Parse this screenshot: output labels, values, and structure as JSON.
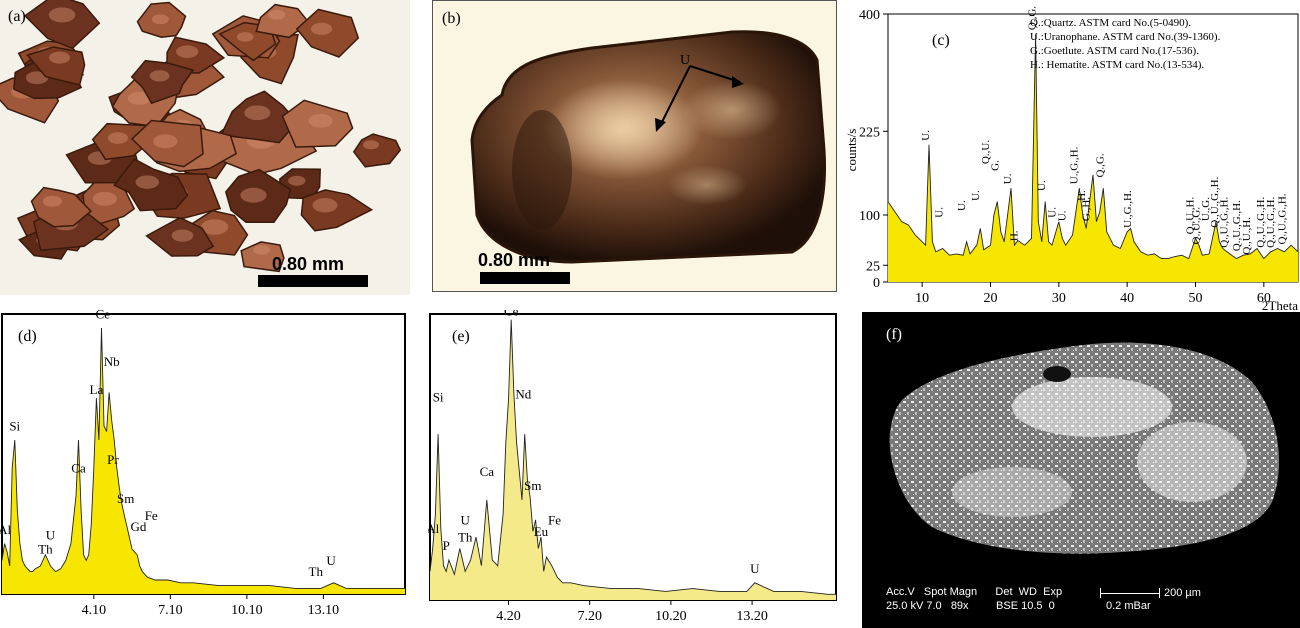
{
  "panels": {
    "a": {
      "label": "(a)",
      "scale_text": "0.80  mm"
    },
    "b": {
      "label": "(b)",
      "scale_text": "0.80  mm",
      "annotation": "U"
    },
    "c": {
      "label": "(c)",
      "legend": [
        "Q.:Quartz. ASTM card No.(5-0490).",
        "U.:Uranophane. ASTM card No.(39-1360).",
        "G.:Goetlute. ASTM card No.(17-536).",
        "H.: Hematite. ASTM card No.(13-534)."
      ],
      "ylabel": "counts/s",
      "xlabel": "2Theta"
    },
    "d": {
      "label": "(d)"
    },
    "e": {
      "label": "(e)"
    },
    "f": {
      "label": "(f)",
      "info_line1": "Acc.V   Spot Magn      Det  WD  Exp",
      "info_line2": "25.0 kV 7.0   89x         BSE 10.5  0",
      "scale_label": "200 µm",
      "bar_label": "0.2 mBar"
    }
  },
  "chart_data": [
    {
      "id": "c",
      "type": "area",
      "title": "",
      "xlabel": "2Theta",
      "ylabel": "counts/s",
      "xlim": [
        5,
        65
      ],
      "ylim": [
        0,
        400
      ],
      "xticks": [
        10,
        20,
        30,
        40,
        50,
        60
      ],
      "yticks": [
        0,
        25,
        100,
        225,
        400
      ],
      "series": [
        {
          "x": [
            5,
            6,
            7,
            8,
            9,
            10,
            10.5,
            11,
            11.5,
            12,
            13,
            14,
            15,
            16,
            16.5,
            17,
            18,
            18.5,
            19,
            20,
            20.5,
            21,
            21.5,
            22,
            23,
            23.5,
            24,
            25,
            26,
            26.6,
            27,
            27.5,
            28,
            28.5,
            29,
            30,
            30.5,
            31,
            32,
            33,
            33.5,
            34,
            35,
            35.5,
            36,
            36.5,
            37,
            38,
            39,
            40,
            40.5,
            41,
            42,
            43,
            44,
            45,
            46,
            47,
            48,
            49,
            50,
            50.5,
            51,
            52,
            53,
            53.5,
            54,
            55,
            56,
            57,
            58,
            59,
            60,
            61,
            62,
            63,
            64,
            65
          ],
          "y": [
            120,
            105,
            90,
            85,
            70,
            60,
            55,
            205,
            60,
            45,
            50,
            40,
            42,
            40,
            60,
            42,
            55,
            80,
            48,
            55,
            100,
            120,
            75,
            60,
            140,
            55,
            62,
            55,
            65,
            370,
            90,
            60,
            120,
            60,
            55,
            90,
            65,
            55,
            70,
            140,
            100,
            80,
            160,
            90,
            105,
            140,
            75,
            55,
            50,
            75,
            80,
            60,
            45,
            40,
            42,
            35,
            35,
            38,
            40,
            35,
            65,
            55,
            40,
            42,
            90,
            60,
            50,
            42,
            35,
            40,
            42,
            50,
            35,
            45,
            50,
            45,
            55,
            45
          ]
        }
      ],
      "peak_labels": [
        {
          "x": 11,
          "y": 205,
          "text": "U."
        },
        {
          "x": 13,
          "y": 90,
          "text": "U."
        },
        {
          "x": 16.3,
          "y": 100,
          "text": "U."
        },
        {
          "x": 18.3,
          "y": 115,
          "text": "U."
        },
        {
          "x": 19.8,
          "y": 170,
          "text": "Q.,U."
        },
        {
          "x": 21.2,
          "y": 160,
          "text": "G."
        },
        {
          "x": 23,
          "y": 140,
          "text": "U."
        },
        {
          "x": 24,
          "y": 55,
          "text": "H."
        },
        {
          "x": 26.6,
          "y": 370,
          "text": "Q.,G."
        },
        {
          "x": 28,
          "y": 130,
          "text": "U."
        },
        {
          "x": 29.5,
          "y": 90,
          "text": "U."
        },
        {
          "x": 31,
          "y": 85,
          "text": "U."
        },
        {
          "x": 32.7,
          "y": 140,
          "text": "U.,G.,H."
        },
        {
          "x": 33.8,
          "y": 115,
          "text": "H."
        },
        {
          "x": 34.5,
          "y": 85,
          "text": "G.,H."
        },
        {
          "x": 36.5,
          "y": 150,
          "text": "Q.,G."
        },
        {
          "x": 40.6,
          "y": 75,
          "text": "U.,G.,H."
        },
        {
          "x": 49.7,
          "y": 65,
          "text": "Q.,U.,H."
        },
        {
          "x": 50.6,
          "y": 50,
          "text": "Q.,U.,G."
        },
        {
          "x": 52,
          "y": 85,
          "text": "U.,G."
        },
        {
          "x": 53.3,
          "y": 75,
          "text": "Q.,U.,G.,H."
        },
        {
          "x": 54.7,
          "y": 45,
          "text": "Q.,U.,G.,H."
        },
        {
          "x": 56.5,
          "y": 40,
          "text": "Q.,U.,G.,H."
        },
        {
          "x": 58,
          "y": 35,
          "text": "Q.,U.,H."
        },
        {
          "x": 60,
          "y": 45,
          "text": "Q.,U.,G.,H."
        },
        {
          "x": 61.5,
          "y": 45,
          "text": "Q.,U.,G.,H."
        },
        {
          "x": 63.2,
          "y": 50,
          "text": "Q.,U.,G.,H."
        }
      ]
    },
    {
      "id": "d",
      "type": "area",
      "title": "",
      "xlabel": "",
      "ylabel": "",
      "xlim": [
        0.5,
        16.3
      ],
      "ylim": [
        0,
        100
      ],
      "xticks": [
        4.1,
        7.1,
        10.1,
        13.1
      ],
      "xticklabels": [
        "4.10",
        "7.10",
        "10.10",
        "13.10"
      ],
      "series": [
        {
          "x": [
            0.5,
            0.6,
            0.7,
            0.8,
            0.9,
            1.0,
            1.1,
            1.2,
            1.3,
            1.4,
            1.5,
            1.6,
            1.7,
            1.8,
            2.0,
            2.2,
            2.4,
            2.5,
            2.6,
            2.8,
            3.0,
            3.2,
            3.4,
            3.5,
            3.6,
            3.7,
            3.8,
            3.9,
            4.0,
            4.1,
            4.2,
            4.3,
            4.4,
            4.5,
            4.6,
            4.7,
            4.8,
            4.9,
            5.0,
            5.1,
            5.2,
            5.3,
            5.4,
            5.5,
            5.6,
            5.7,
            5.8,
            5.9,
            6.0,
            6.2,
            6.5,
            7.0,
            7.5,
            8,
            9,
            10,
            11,
            12,
            13,
            13.5,
            14,
            15,
            16,
            16.3
          ],
          "y": [
            12,
            18,
            15,
            10,
            45,
            55,
            30,
            18,
            12,
            10,
            9,
            8,
            8,
            9,
            10,
            14,
            10,
            9,
            8,
            9,
            12,
            18,
            35,
            55,
            30,
            14,
            12,
            14,
            25,
            45,
            70,
            55,
            95,
            60,
            58,
            72,
            62,
            55,
            45,
            38,
            32,
            28,
            24,
            20,
            16,
            15,
            14,
            10,
            8,
            6,
            5,
            5,
            4,
            4,
            3,
            3,
            3,
            2,
            2,
            4,
            2,
            2,
            2,
            2
          ]
        }
      ],
      "peak_labels": [
        {
          "x": 0.6,
          "y": 20,
          "text": "Al"
        },
        {
          "x": 1.0,
          "y": 57,
          "text": "Si"
        },
        {
          "x": 2.4,
          "y": 18,
          "text": "U"
        },
        {
          "x": 2.2,
          "y": 13,
          "text": "Th"
        },
        {
          "x": 3.5,
          "y": 42,
          "text": "Ca"
        },
        {
          "x": 4.2,
          "y": 70,
          "text": "La"
        },
        {
          "x": 4.45,
          "y": 97,
          "text": "Ce"
        },
        {
          "x": 4.8,
          "y": 80,
          "text": "Nb"
        },
        {
          "x": 4.85,
          "y": 45,
          "text": "Pr"
        },
        {
          "x": 5.35,
          "y": 31,
          "text": "Sm"
        },
        {
          "x": 6.35,
          "y": 25,
          "text": "Fe"
        },
        {
          "x": 5.85,
          "y": 21,
          "text": "Gd"
        },
        {
          "x": 13.4,
          "y": 9,
          "text": "U"
        },
        {
          "x": 12.8,
          "y": 5,
          "text": "Th"
        }
      ]
    },
    {
      "id": "e",
      "type": "area",
      "title": "",
      "xlabel": "",
      "ylabel": "",
      "xlim": [
        1.3,
        16.3
      ],
      "ylim": [
        0,
        100
      ],
      "xticks": [
        4.2,
        7.2,
        10.2,
        13.2
      ],
      "xticklabels": [
        "4.20",
        "7.20",
        "10.20",
        "13.20"
      ],
      "series": [
        {
          "x": [
            1.3,
            1.4,
            1.5,
            1.6,
            1.7,
            1.8,
            1.9,
            2.0,
            2.2,
            2.4,
            2.6,
            2.8,
            3.0,
            3.2,
            3.4,
            3.6,
            3.8,
            4.0,
            4.1,
            4.2,
            4.3,
            4.4,
            4.5,
            4.6,
            4.7,
            4.8,
            4.9,
            5.0,
            5.1,
            5.2,
            5.3,
            5.4,
            5.5,
            5.6,
            5.8,
            6.0,
            6.2,
            6.5,
            7,
            8,
            9,
            10,
            11,
            12,
            13,
            13.3,
            14,
            15,
            16,
            16.3
          ],
          "y": [
            10,
            18,
            30,
            58,
            25,
            12,
            10,
            14,
            9,
            18,
            10,
            14,
            22,
            12,
            35,
            14,
            12,
            30,
            55,
            70,
            98,
            72,
            55,
            45,
            35,
            58,
            42,
            36,
            24,
            28,
            18,
            22,
            10,
            15,
            12,
            8,
            6,
            6,
            5,
            4,
            4,
            3,
            4,
            3,
            3,
            6,
            3,
            3,
            2,
            2
          ]
        }
      ],
      "peak_labels": [
        {
          "x": 1.4,
          "y": 22,
          "text": "Al"
        },
        {
          "x": 1.6,
          "y": 68,
          "text": "Si"
        },
        {
          "x": 1.9,
          "y": 16,
          "text": "P"
        },
        {
          "x": 2.6,
          "y": 25,
          "text": "U"
        },
        {
          "x": 2.6,
          "y": 19,
          "text": "Th"
        },
        {
          "x": 3.4,
          "y": 42,
          "text": "Ca"
        },
        {
          "x": 4.3,
          "y": 98,
          "text": "Ce"
        },
        {
          "x": 4.75,
          "y": 69,
          "text": "Nd"
        },
        {
          "x": 5.1,
          "y": 37,
          "text": "Sm"
        },
        {
          "x": 5.4,
          "y": 21,
          "text": "Eu"
        },
        {
          "x": 5.9,
          "y": 25,
          "text": "Fe"
        },
        {
          "x": 13.3,
          "y": 8,
          "text": "U"
        }
      ]
    }
  ]
}
